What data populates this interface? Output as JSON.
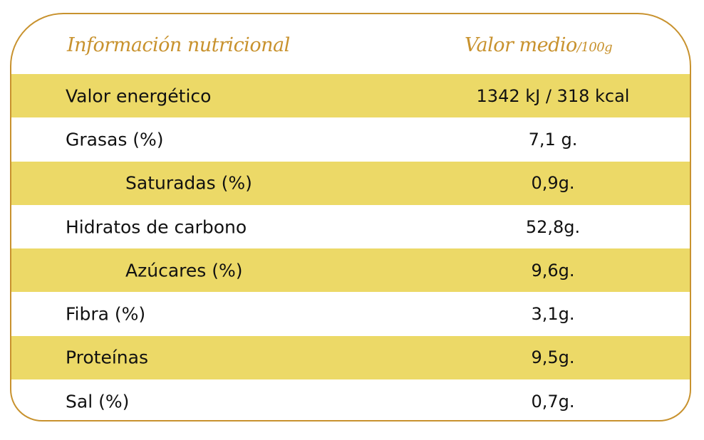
{
  "header": {
    "title": "Información nutricional",
    "value_header": "Valor medio",
    "value_unit": "/100g"
  },
  "colors": {
    "accent": "#C8922E",
    "stripe": "#ECD967"
  },
  "rows": [
    {
      "label": "Valor energético",
      "value": "1342 kJ / 318 kcal"
    },
    {
      "label": "Grasas (%)",
      "value": "7,1 g."
    },
    {
      "label": "Saturadas (%)",
      "value": "0,9g."
    },
    {
      "label": "Hidratos de carbono",
      "value": "52,8g."
    },
    {
      "label": "Azúcares (%)",
      "value": "9,6g."
    },
    {
      "label": "Fibra (%)",
      "value": "3,1g."
    },
    {
      "label": "Proteínas",
      "value": "9,5g."
    },
    {
      "label": "Sal (%)",
      "value": "0,7g."
    }
  ]
}
